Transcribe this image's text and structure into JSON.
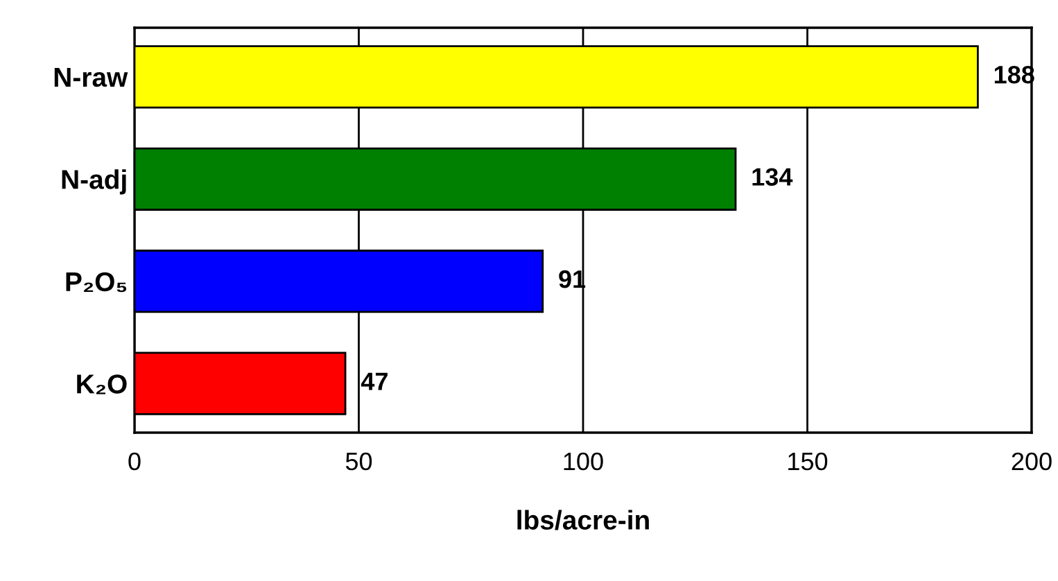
{
  "chart_data": {
    "type": "bar",
    "orientation": "horizontal",
    "categories": [
      "N-raw",
      "N-adj",
      "P₂O₅",
      "K₂O"
    ],
    "values": [
      188,
      134,
      91,
      47
    ],
    "colors": [
      "#ffff00",
      "#008000",
      "#0000ff",
      "#ff0000"
    ],
    "data_labels": true,
    "xlabel": "lbs/acre-in",
    "xlim": [
      0,
      200
    ],
    "xticks": [
      0,
      50,
      100,
      150,
      200
    ],
    "grid": "x"
  }
}
